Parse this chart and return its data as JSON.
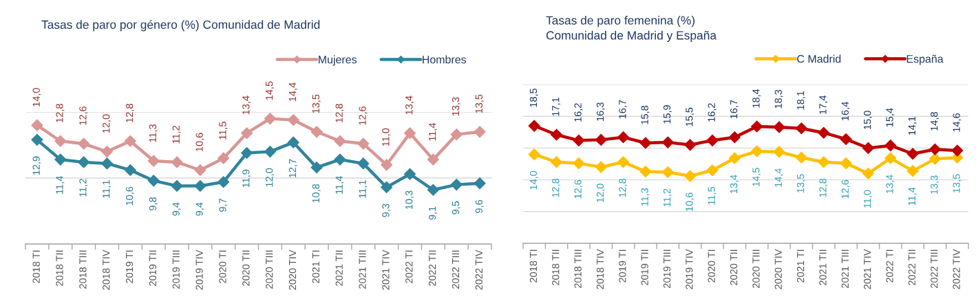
{
  "chart_data": [
    {
      "type": "line",
      "title": "Tasas de paro por género (%) Comunidad de Madrid",
      "categories": [
        "2018 TI",
        "2018 TII",
        "2018 TIII",
        "2018 TIV",
        "2019 TI",
        "2019 TII",
        "2019 TIII",
        "2019 TIV",
        "2020 TI",
        "2020 TII",
        "2020 TIII",
        "2020 TIV",
        "2021 TI",
        "2021 TII",
        "2021 TIII",
        "2021 TIV",
        "2022 TI",
        "2022 TII",
        "2022 TIII",
        "2022 TIV"
      ],
      "series": [
        {
          "name": "Mujeres",
          "color": "#d99694",
          "values": [
            14.0,
            12.8,
            12.6,
            12.0,
            12.8,
            11.3,
            11.2,
            10.6,
            11.5,
            13.4,
            14.5,
            14.4,
            13.5,
            12.8,
            12.6,
            11.0,
            13.4,
            11.4,
            13.3,
            13.5
          ],
          "value_labels": [
            "14,0",
            "12,8",
            "12,6",
            "12,0",
            "12,8",
            "11,3",
            "11,2",
            "10,6",
            "11,5",
            "13,4",
            "14,5",
            "14,4",
            "13,5",
            "12,8",
            "12,6",
            "11,0",
            "13,4",
            "11,4",
            "13,3",
            "13,5"
          ]
        },
        {
          "name": "Hombres",
          "color": "#31849b",
          "values": [
            12.9,
            11.4,
            11.2,
            11.1,
            10.6,
            9.8,
            9.4,
            9.4,
            9.7,
            11.9,
            12.0,
            12.7,
            10.8,
            11.4,
            11.1,
            9.3,
            10.3,
            9.1,
            9.5,
            9.6
          ],
          "value_labels": [
            "12,9",
            "11,4",
            "11,2",
            "11,1",
            "10,6",
            "9,8",
            "9,4",
            "9,4",
            "9,7",
            "11,9",
            "12,0",
            "12,7",
            "10,8",
            "11,4",
            "11,1",
            "9,3",
            "10,3",
            "9,1",
            "9,5",
            "9,6"
          ]
        }
      ],
      "ylim": [
        5,
        15
      ],
      "yticks": [
        {
          "value": 5,
          "label": null
        },
        {
          "value": 10,
          "label": null
        },
        {
          "value": 15,
          "label": null
        }
      ],
      "grid": "y",
      "legend": "top right",
      "marker": "diamond",
      "line_style": "solid",
      "tick_labels": "x"
    },
    {
      "type": "line",
      "title": "Tasas de paro femenina (%)\nComunidad de Madrid y España",
      "categories": [
        "2018 TI",
        "2018 TII",
        "2018 TIII",
        "2018 TIV",
        "2019 TI",
        "2019 TII",
        "2019 TIII",
        "2019 TIV",
        "2020 TI",
        "2020 TII",
        "2020 TIII",
        "2020 TIV",
        "2021 TI",
        "2021 TII",
        "2021 TIII",
        "2021 TIV",
        "2022 TI",
        "2022 TII",
        "2022 TIII",
        "2022 TIV"
      ],
      "series": [
        {
          "name": "C Madrid",
          "color": "#ffc000",
          "values": [
            14.0,
            12.8,
            12.6,
            12.0,
            12.8,
            11.3,
            11.2,
            10.6,
            11.5,
            13.4,
            14.5,
            14.4,
            13.5,
            12.8,
            12.6,
            11.0,
            13.4,
            11.4,
            13.3,
            13.5
          ],
          "value_labels": [
            "14,0",
            "12,8",
            "12,6",
            "12,0",
            "12,8",
            "11,3",
            "11,2",
            "10,6",
            "11,5",
            "13,4",
            "14,5",
            "14,4",
            "13,5",
            "12,8",
            "12,6",
            "11,0",
            "13,4",
            "11,4",
            "13,3",
            "13,5"
          ]
        },
        {
          "name": "España",
          "color": "#c00000",
          "values": [
            18.5,
            17.1,
            16.2,
            16.3,
            16.7,
            15.8,
            15.9,
            15.5,
            16.2,
            16.7,
            18.4,
            18.3,
            18.1,
            17.4,
            16.4,
            15.0,
            15.4,
            14.1,
            14.8,
            14.6
          ],
          "value_labels": [
            "18,5",
            "17,1",
            "16,2",
            "16,3",
            "16,7",
            "15,8",
            "15,9",
            "15,5",
            "16,2",
            "16,7",
            "18,4",
            "18,3",
            "18,1",
            "17,4",
            "16,4",
            "15,0",
            "15,4",
            "14,1",
            "14,8",
            "14,6"
          ]
        }
      ],
      "ylim": [
        0,
        25
      ],
      "yticks": [
        {
          "value": 0,
          "label": null
        },
        {
          "value": 5,
          "label": null
        },
        {
          "value": 10,
          "label": null
        },
        {
          "value": 15,
          "label": null
        },
        {
          "value": 20,
          "label": null
        },
        {
          "value": 25,
          "label": null
        }
      ],
      "grid": "y",
      "legend": "top right",
      "marker": "diamond",
      "line_style": "solid",
      "tick_labels": "x"
    }
  ]
}
